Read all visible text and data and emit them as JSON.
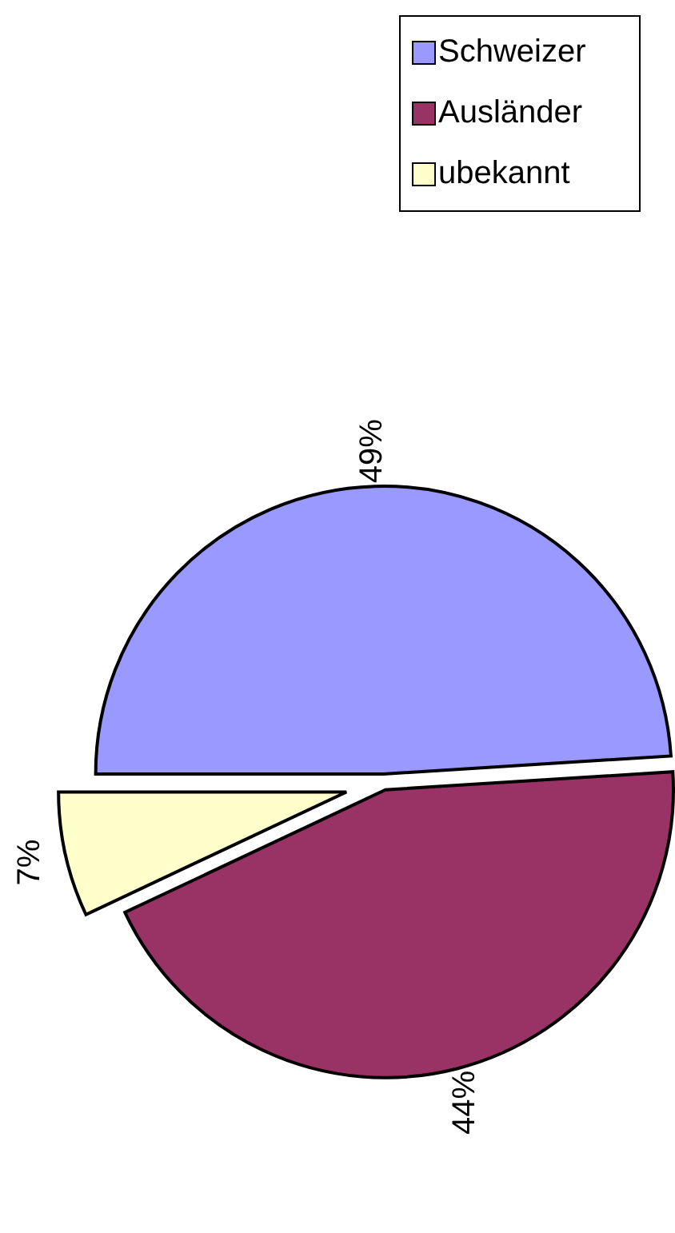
{
  "chart_data": {
    "type": "pie",
    "categories": [
      "Schweizer",
      "Ausländer",
      "ubekannt"
    ],
    "values": [
      49,
      44,
      7
    ],
    "colors": [
      "#9999ff",
      "#993366",
      "#ffffcc"
    ],
    "value_labels": [
      "49%",
      "44%",
      "7%"
    ],
    "legend": "right"
  }
}
